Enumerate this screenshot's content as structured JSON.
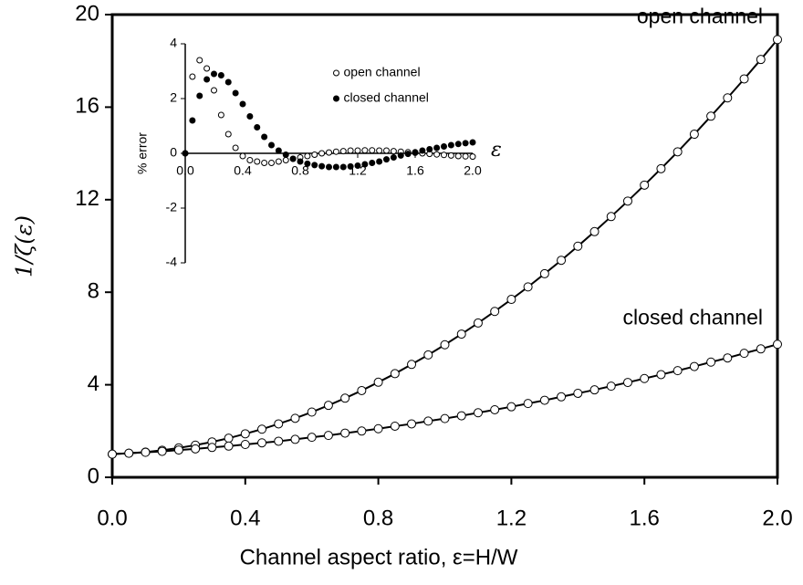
{
  "chart_data": [
    {
      "type": "line",
      "x_label": "Channel aspect ratio, ε=H/W",
      "y_label": "1/ζ(ε)",
      "xlim": [
        0,
        2
      ],
      "ylim": [
        0,
        20
      ],
      "xticks": [
        {
          "value": 0,
          "label": "0.0"
        },
        0.4,
        0.8,
        1.2,
        1.6,
        {
          "value": 2,
          "label": "2.0"
        }
      ],
      "yticks": [
        0,
        4,
        8,
        12,
        16,
        20
      ],
      "x": [
        0,
        0.05,
        0.1,
        0.15,
        0.2,
        0.25,
        0.3,
        0.35,
        0.4,
        0.45,
        0.5,
        0.55,
        0.6,
        0.65,
        0.7,
        0.75,
        0.8,
        0.85,
        0.9,
        0.95,
        1.0,
        1.05,
        1.1,
        1.15,
        1.2,
        1.25,
        1.3,
        1.35,
        1.4,
        1.45,
        1.5,
        1.55,
        1.6,
        1.65,
        1.7,
        1.75,
        1.8,
        1.85,
        1.9,
        1.95,
        2.0
      ],
      "series": [
        {
          "name": "open channel",
          "color": "#000000",
          "fill": "#ffffff",
          "values": [
            1.0,
            1.04,
            1.09,
            1.17,
            1.27,
            1.39,
            1.53,
            1.69,
            1.88,
            2.08,
            2.31,
            2.55,
            2.82,
            3.11,
            3.42,
            3.75,
            4.11,
            4.48,
            4.88,
            5.29,
            5.73,
            6.19,
            6.67,
            7.17,
            7.69,
            8.23,
            8.8,
            9.38,
            9.99,
            10.62,
            11.27,
            11.94,
            12.63,
            13.34,
            14.07,
            14.83,
            15.61,
            16.4,
            17.22,
            18.06,
            18.92
          ]
        },
        {
          "name": "closed channel",
          "color": "#000000",
          "fill": "#ffffff",
          "values": [
            1.0,
            1.04,
            1.08,
            1.12,
            1.18,
            1.23,
            1.29,
            1.35,
            1.42,
            1.49,
            1.56,
            1.64,
            1.73,
            1.81,
            1.91,
            2.0,
            2.1,
            2.21,
            2.31,
            2.43,
            2.54,
            2.66,
            2.79,
            2.92,
            3.05,
            3.19,
            3.33,
            3.48,
            3.63,
            3.78,
            3.94,
            4.1,
            4.27,
            4.44,
            4.61,
            4.79,
            4.98,
            5.16,
            5.36,
            5.55,
            5.75
          ]
        }
      ]
    },
    {
      "type": "scatter",
      "x_label": "ε",
      "y_label": "% error",
      "xlim": [
        0,
        2
      ],
      "ylim": [
        -4,
        4
      ],
      "xticks": [
        {
          "value": 0,
          "label": "0.0"
        },
        0.4,
        0.8,
        1.2,
        1.6,
        {
          "value": 2,
          "label": "2.0"
        }
      ],
      "yticks": [
        -4,
        -2,
        0,
        2,
        4
      ],
      "legend": "upper center",
      "x": [
        0,
        0.05,
        0.1,
        0.15,
        0.2,
        0.25,
        0.3,
        0.35,
        0.4,
        0.45,
        0.5,
        0.55,
        0.6,
        0.65,
        0.7,
        0.75,
        0.8,
        0.85,
        0.9,
        0.95,
        1.0,
        1.05,
        1.1,
        1.15,
        1.2,
        1.25,
        1.3,
        1.35,
        1.4,
        1.45,
        1.5,
        1.55,
        1.6,
        1.65,
        1.7,
        1.75,
        1.8,
        1.85,
        1.9,
        1.95,
        2.0
      ],
      "series": [
        {
          "name": "open channel",
          "color": "#000000",
          "fill": "#ffffff",
          "values": [
            0,
            2.8,
            3.4,
            3.1,
            2.3,
            1.4,
            0.7,
            0.2,
            -0.1,
            -0.25,
            -0.3,
            -0.35,
            -0.35,
            -0.3,
            -0.25,
            -0.2,
            -0.15,
            -0.1,
            -0.05,
            0,
            0.03,
            0.06,
            0.08,
            0.1,
            0.1,
            0.11,
            0.11,
            0.1,
            0.1,
            0.08,
            0.06,
            0.04,
            0.02,
            0,
            -0.02,
            -0.04,
            -0.06,
            -0.08,
            -0.1,
            -0.11,
            -0.12
          ]
        },
        {
          "name": "closed channel",
          "color": "#000000",
          "fill": "#000000",
          "values": [
            0,
            1.2,
            2.1,
            2.7,
            2.9,
            2.85,
            2.6,
            2.2,
            1.8,
            1.35,
            0.95,
            0.6,
            0.3,
            0.1,
            -0.05,
            -0.2,
            -0.3,
            -0.38,
            -0.43,
            -0.47,
            -0.5,
            -0.5,
            -0.5,
            -0.48,
            -0.45,
            -0.4,
            -0.35,
            -0.3,
            -0.22,
            -0.15,
            -0.08,
            -0.02,
            0.04,
            0.1,
            0.15,
            0.2,
            0.25,
            0.3,
            0.34,
            0.37,
            0.4
          ]
        }
      ]
    }
  ]
}
